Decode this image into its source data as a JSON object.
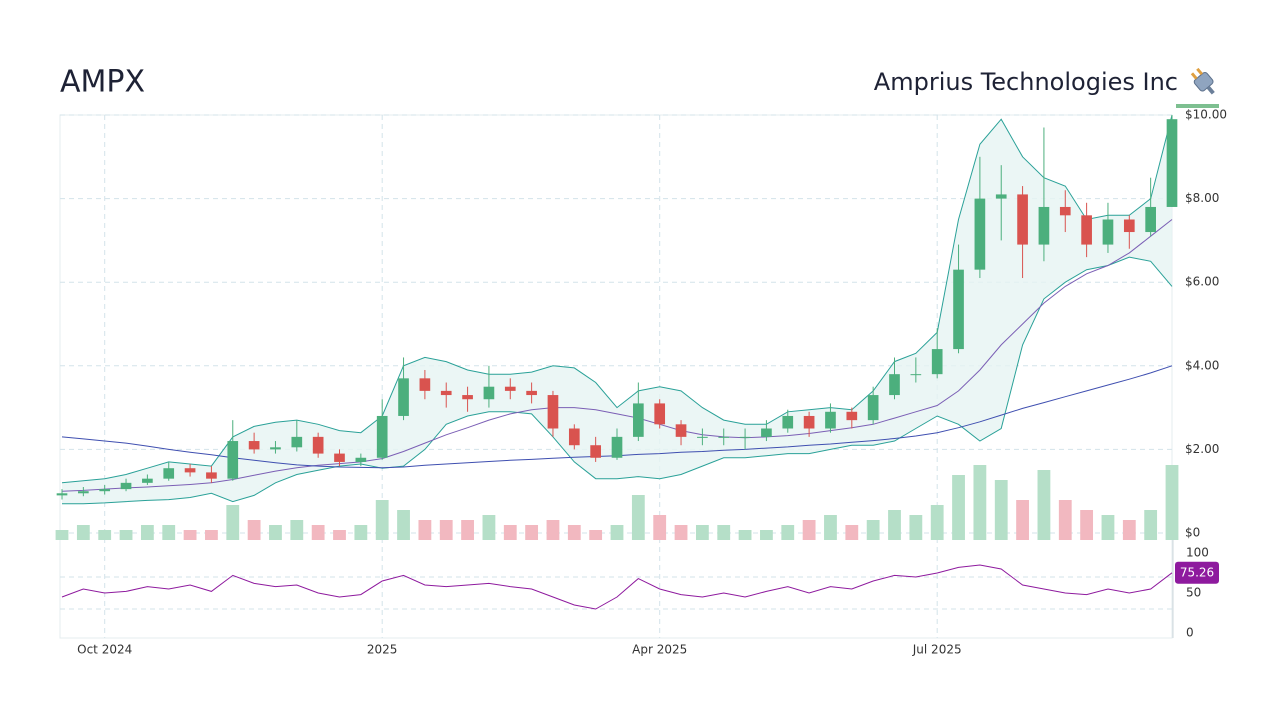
{
  "chart_data": {
    "type": "candlestick",
    "title": "AMPX",
    "subtitle": "Amprius Technologies Inc",
    "categories": [
      null,
      null,
      "Oct 2024",
      null,
      null,
      null,
      null,
      null,
      null,
      null,
      null,
      null,
      null,
      null,
      null,
      "2025",
      null,
      null,
      null,
      null,
      null,
      null,
      null,
      null,
      null,
      null,
      null,
      null,
      "Apr 2025",
      null,
      null,
      null,
      null,
      null,
      null,
      null,
      null,
      null,
      null,
      null,
      null,
      "Jul 2025",
      null,
      null,
      null,
      null,
      null,
      null,
      null,
      null,
      null,
      null,
      null
    ],
    "open": [
      0.9,
      0.95,
      1.0,
      1.05,
      1.2,
      1.3,
      1.55,
      1.45,
      1.3,
      2.2,
      2.0,
      2.05,
      2.3,
      1.9,
      1.7,
      1.8,
      2.8,
      3.7,
      3.4,
      3.3,
      3.2,
      3.5,
      3.4,
      3.3,
      2.5,
      2.1,
      1.8,
      2.3,
      3.1,
      2.6,
      2.3,
      2.3,
      2.3,
      2.3,
      2.5,
      2.8,
      2.5,
      2.9,
      2.7,
      3.3,
      3.8,
      3.8,
      4.4,
      6.3,
      8.0,
      8.1,
      6.9,
      7.8,
      7.6,
      6.9,
      7.5,
      7.2,
      7.8
    ],
    "high": [
      1.05,
      1.1,
      1.15,
      1.3,
      1.4,
      1.7,
      1.65,
      1.6,
      2.7,
      2.4,
      2.2,
      2.7,
      2.4,
      2.0,
      1.9,
      3.2,
      4.2,
      3.9,
      3.6,
      3.5,
      4.0,
      3.7,
      3.6,
      3.4,
      2.6,
      2.3,
      2.5,
      3.6,
      3.2,
      2.7,
      2.5,
      2.5,
      2.5,
      2.7,
      2.95,
      2.9,
      3.1,
      3.0,
      3.5,
      4.2,
      4.2,
      4.9,
      6.9,
      9.0,
      8.8,
      8.3,
      9.7,
      8.2,
      7.9,
      7.9,
      7.6,
      8.5,
      10.0
    ],
    "low": [
      0.8,
      0.88,
      0.92,
      1.0,
      1.15,
      1.25,
      1.35,
      1.2,
      1.25,
      1.9,
      1.9,
      1.95,
      1.8,
      1.6,
      1.6,
      1.75,
      2.7,
      3.2,
      3.0,
      2.9,
      3.0,
      3.2,
      3.1,
      2.3,
      2.0,
      1.7,
      1.75,
      2.2,
      2.5,
      2.1,
      2.1,
      2.1,
      2.0,
      2.2,
      2.4,
      2.3,
      2.4,
      2.5,
      2.6,
      3.2,
      3.6,
      3.7,
      4.3,
      6.1,
      7.0,
      6.1,
      6.5,
      7.2,
      6.6,
      6.7,
      6.8,
      7.1,
      7.8
    ],
    "close": [
      0.95,
      1.0,
      1.05,
      1.2,
      1.3,
      1.55,
      1.45,
      1.3,
      2.2,
      2.0,
      2.05,
      2.3,
      1.9,
      1.7,
      1.8,
      2.8,
      3.7,
      3.4,
      3.3,
      3.2,
      3.5,
      3.4,
      3.3,
      2.5,
      2.1,
      1.8,
      2.3,
      3.1,
      2.6,
      2.3,
      2.3,
      2.3,
      2.3,
      2.5,
      2.8,
      2.5,
      2.9,
      2.7,
      3.3,
      3.8,
      3.8,
      4.4,
      6.3,
      8.0,
      8.1,
      6.9,
      7.8,
      7.6,
      6.9,
      7.5,
      7.2,
      7.8,
      9.9
    ],
    "volume": [
      2,
      3,
      2,
      2,
      3,
      3,
      2,
      2,
      7,
      4,
      3,
      4,
      3,
      2,
      3,
      8,
      6,
      4,
      4,
      4,
      5,
      3,
      3,
      4,
      3,
      2,
      3,
      9,
      5,
      3,
      3,
      3,
      2,
      2,
      3,
      4,
      5,
      3,
      4,
      6,
      5,
      7,
      13,
      15,
      12,
      8,
      14,
      8,
      6,
      5,
      4,
      6,
      15
    ],
    "up_color": "#4caf7d",
    "down_color": "#d9534f",
    "up_volume_color": "#b5dfc8",
    "down_volume_color": "#f2b8c0",
    "band": {
      "color": "#2aa198",
      "fill": "#e6f4f2",
      "upper": [
        1.2,
        1.25,
        1.3,
        1.4,
        1.55,
        1.7,
        1.65,
        1.6,
        2.3,
        2.55,
        2.65,
        2.7,
        2.6,
        2.45,
        2.4,
        2.8,
        4.0,
        4.2,
        4.1,
        3.9,
        3.8,
        3.8,
        3.85,
        4.0,
        3.95,
        3.6,
        3.0,
        3.4,
        3.5,
        3.4,
        3.0,
        2.7,
        2.6,
        2.6,
        2.9,
        2.95,
        3.0,
        2.95,
        3.4,
        4.1,
        4.3,
        4.8,
        7.5,
        9.3,
        9.9,
        9.0,
        8.5,
        8.3,
        7.5,
        7.6,
        7.6,
        8.0,
        10.0
      ],
      "lower": [
        0.7,
        0.7,
        0.72,
        0.75,
        0.78,
        0.8,
        0.85,
        0.95,
        0.75,
        0.9,
        1.2,
        1.4,
        1.5,
        1.6,
        1.65,
        1.55,
        1.6,
        2.0,
        2.6,
        2.8,
        2.9,
        2.9,
        2.85,
        2.3,
        1.7,
        1.3,
        1.3,
        1.35,
        1.3,
        1.4,
        1.6,
        1.8,
        1.8,
        1.85,
        1.9,
        1.9,
        2.0,
        2.1,
        2.1,
        2.2,
        2.5,
        2.8,
        2.6,
        2.2,
        2.5,
        4.5,
        5.6,
        6.0,
        6.3,
        6.4,
        6.6,
        6.5,
        5.9
      ]
    },
    "overlays": [
      {
        "color": "#7b5fb5",
        "values": [
          1.0,
          1.02,
          1.05,
          1.08,
          1.1,
          1.13,
          1.16,
          1.2,
          1.28,
          1.38,
          1.48,
          1.56,
          1.62,
          1.66,
          1.7,
          1.78,
          1.95,
          2.15,
          2.35,
          2.52,
          2.7,
          2.85,
          2.95,
          3.0,
          3.0,
          2.95,
          2.85,
          2.75,
          2.6,
          2.45,
          2.35,
          2.3,
          2.28,
          2.3,
          2.33,
          2.38,
          2.45,
          2.52,
          2.6,
          2.75,
          2.9,
          3.05,
          3.4,
          3.9,
          4.5,
          5.0,
          5.5,
          5.9,
          6.2,
          6.4,
          6.7,
          7.1,
          7.5
        ]
      },
      {
        "color": "#3f4fb0",
        "values": [
          2.3,
          2.25,
          2.2,
          2.15,
          2.08,
          2.0,
          1.93,
          1.87,
          1.8,
          1.74,
          1.68,
          1.63,
          1.6,
          1.58,
          1.57,
          1.56,
          1.58,
          1.62,
          1.65,
          1.68,
          1.71,
          1.74,
          1.76,
          1.79,
          1.81,
          1.83,
          1.85,
          1.88,
          1.9,
          1.93,
          1.95,
          1.98,
          2.0,
          2.03,
          2.06,
          2.1,
          2.13,
          2.17,
          2.21,
          2.26,
          2.32,
          2.4,
          2.52,
          2.66,
          2.82,
          2.98,
          3.12,
          3.26,
          3.4,
          3.54,
          3.68,
          3.83,
          4.0
        ]
      }
    ],
    "ylim": [
      0,
      10
    ],
    "yticks": [
      {
        "value": 0,
        "label": "$0"
      },
      {
        "value": 2,
        "label": "$2.00"
      },
      {
        "value": 4,
        "label": "$4.00"
      },
      {
        "value": 6,
        "label": "$6.00"
      },
      {
        "value": 8,
        "label": "$8.00"
      },
      {
        "value": 10,
        "label": "$10.00"
      }
    ],
    "grid": true,
    "rsi": {
      "color": "#8e1a9e",
      "values": [
        45,
        55,
        50,
        52,
        58,
        55,
        60,
        52,
        72,
        62,
        58,
        60,
        50,
        45,
        48,
        65,
        72,
        60,
        58,
        60,
        62,
        58,
        55,
        45,
        35,
        30,
        45,
        68,
        55,
        48,
        45,
        50,
        45,
        52,
        58,
        50,
        58,
        55,
        65,
        72,
        70,
        75,
        82,
        85,
        80,
        60,
        55,
        50,
        48,
        55,
        50,
        55,
        75.26
      ],
      "ylim": [
        0,
        100
      ],
      "yticks": [
        0,
        50,
        100
      ],
      "levels": [
        30,
        70
      ]
    }
  }
}
